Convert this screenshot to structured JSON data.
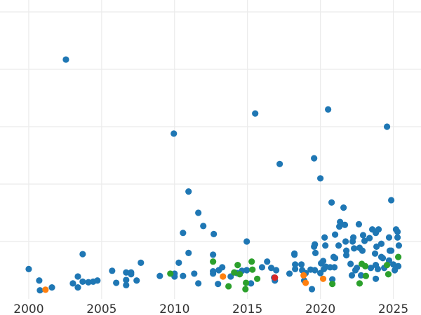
{
  "chart_data": {
    "type": "scatter",
    "title": "",
    "xlabel": "",
    "ylabel": "",
    "xlim": [
      1998.03,
      2026.9
    ],
    "ylim": [
      0,
      5.2
    ],
    "grid": true,
    "x_ticks": [
      2000,
      2005,
      2010,
      2015,
      2020,
      2025
    ],
    "x_tick_labels": [
      "2000",
      "2005",
      "2010",
      "2015",
      "2020",
      "2025"
    ],
    "y_gridlines": [
      1,
      2,
      3,
      4,
      5
    ],
    "series": [
      {
        "name": "blue",
        "color": "#1f77b4",
        "points": [
          [
            2000.0,
            0.52
          ],
          [
            2000.72,
            0.32
          ],
          [
            2000.77,
            0.15
          ],
          [
            2001.59,
            0.2
          ],
          [
            2002.55,
            4.17
          ],
          [
            2003.03,
            0.27
          ],
          [
            2003.37,
            0.39
          ],
          [
            2003.37,
            0.2
          ],
          [
            2003.7,
            0.78
          ],
          [
            2003.7,
            0.3
          ],
          [
            2004.09,
            0.29
          ],
          [
            2004.42,
            0.3
          ],
          [
            2004.71,
            0.32
          ],
          [
            2005.72,
            0.49
          ],
          [
            2006.0,
            0.28
          ],
          [
            2006.68,
            0.46
          ],
          [
            2006.68,
            0.33
          ],
          [
            2006.68,
            0.24
          ],
          [
            2007.02,
            0.46
          ],
          [
            2007.02,
            0.43
          ],
          [
            2007.4,
            0.32
          ],
          [
            2007.69,
            0.63
          ],
          [
            2008.99,
            0.4
          ],
          [
            2009.95,
            2.88
          ],
          [
            2010.0,
            0.44
          ],
          [
            2010.0,
            0.39
          ],
          [
            2010.29,
            0.63
          ],
          [
            2010.58,
            1.15
          ],
          [
            2010.58,
            0.4
          ],
          [
            2010.96,
            1.87
          ],
          [
            2010.96,
            0.8
          ],
          [
            2011.35,
            0.44
          ],
          [
            2011.63,
            1.5
          ],
          [
            2011.63,
            0.27
          ],
          [
            2011.97,
            1.27
          ],
          [
            2012.69,
            1.13
          ],
          [
            2012.64,
            0.77
          ],
          [
            2012.64,
            0.48
          ],
          [
            2012.64,
            0.44
          ],
          [
            2012.98,
            0.26
          ],
          [
            2013.03,
            0.5
          ],
          [
            2013.27,
            0.55
          ],
          [
            2013.85,
            0.39
          ],
          [
            2014.28,
            0.45
          ],
          [
            2014.62,
            0.49
          ],
          [
            2014.95,
            0.5
          ],
          [
            2014.95,
            1.0
          ],
          [
            2015.24,
            0.27
          ],
          [
            2015.53,
            3.23
          ],
          [
            2016.0,
            0.55
          ],
          [
            2016.35,
            0.65
          ],
          [
            2016.63,
            0.54
          ],
          [
            2016.83,
            0.37
          ],
          [
            2016.88,
            0.32
          ],
          [
            2016.97,
            0.5
          ],
          [
            2017.21,
            2.35
          ],
          [
            2017.88,
            0.44
          ],
          [
            2018.22,
            0.79
          ],
          [
            2018.22,
            0.77
          ],
          [
            2018.27,
            0.6
          ],
          [
            2018.27,
            0.52
          ],
          [
            2018.7,
            0.6
          ],
          [
            2018.75,
            0.5
          ],
          [
            2018.89,
            0.32
          ],
          [
            2018.99,
            0.45
          ],
          [
            2019.33,
            0.51
          ],
          [
            2019.42,
            0.17
          ],
          [
            2019.57,
            2.45
          ],
          [
            2019.57,
            0.91
          ],
          [
            2019.62,
            0.95
          ],
          [
            2019.66,
            0.8
          ],
          [
            2019.62,
            0.5
          ],
          [
            2020.0,
            2.1
          ],
          [
            2020.0,
            0.45
          ],
          [
            2020.05,
            0.62
          ],
          [
            2020.19,
            0.66
          ],
          [
            2020.24,
            0.52
          ],
          [
            2020.29,
            1.07
          ],
          [
            2020.34,
            0.93
          ],
          [
            2020.38,
            0.56
          ],
          [
            2020.53,
            3.3
          ],
          [
            2020.67,
            0.55
          ],
          [
            2020.77,
            1.68
          ],
          [
            2020.82,
            0.34
          ],
          [
            2020.91,
            0.73
          ],
          [
            2020.96,
            0.55
          ],
          [
            2021.01,
            1.12
          ],
          [
            2021.01,
            0.71
          ],
          [
            2021.25,
            0.93
          ],
          [
            2021.3,
            1.26
          ],
          [
            2021.35,
            1.34
          ],
          [
            2021.59,
            1.59
          ],
          [
            2021.68,
            1.29
          ],
          [
            2021.73,
            1.0
          ],
          [
            2021.78,
            0.84
          ],
          [
            2021.78,
            0.76
          ],
          [
            2022.07,
            0.61
          ],
          [
            2022.16,
            0.41
          ],
          [
            2022.21,
            1.0
          ],
          [
            2022.26,
            1.07
          ],
          [
            2022.31,
            0.88
          ],
          [
            2022.4,
            0.5
          ],
          [
            2022.5,
            0.54
          ],
          [
            2022.64,
            1.3
          ],
          [
            2022.69,
            0.89
          ],
          [
            2022.79,
            0.41
          ],
          [
            2022.88,
            0.84
          ],
          [
            2022.93,
            1.11
          ],
          [
            2023.03,
            1.01
          ],
          [
            2023.37,
            1.06
          ],
          [
            2023.56,
            1.21
          ],
          [
            2023.75,
            0.79
          ],
          [
            2023.8,
            0.59
          ],
          [
            2023.8,
            0.35
          ],
          [
            2023.85,
            0.91
          ],
          [
            2023.8,
            1.15
          ],
          [
            2023.99,
            1.21
          ],
          [
            2024.18,
            0.96
          ],
          [
            2024.18,
            0.73
          ],
          [
            2024.28,
            0.71
          ],
          [
            2024.38,
            0.54
          ],
          [
            2024.57,
            3.0
          ],
          [
            2024.71,
            1.07
          ],
          [
            2024.71,
            0.67
          ],
          [
            2024.76,
            0.84
          ],
          [
            2024.86,
            1.72
          ],
          [
            2024.86,
            0.84
          ],
          [
            2025.0,
            0.6
          ],
          [
            2025.19,
            1.21
          ],
          [
            2025.29,
            1.17
          ],
          [
            2025.29,
            1.07
          ],
          [
            2025.38,
            0.93
          ],
          [
            2025.34,
            0.57
          ],
          [
            2025.1,
            0.5
          ],
          [
            2023.94,
            0.52
          ],
          [
            2023.46,
            0.54
          ]
        ]
      },
      {
        "name": "green",
        "color": "#2ca02c",
        "points": [
          [
            2009.71,
            0.44
          ],
          [
            2012.64,
            0.65
          ],
          [
            2013.7,
            0.22
          ],
          [
            2014.09,
            0.46
          ],
          [
            2014.33,
            0.59
          ],
          [
            2014.47,
            0.43
          ],
          [
            2014.86,
            0.17
          ],
          [
            2014.9,
            0.28
          ],
          [
            2015.29,
            0.65
          ],
          [
            2015.34,
            0.51
          ],
          [
            2015.67,
            0.35
          ],
          [
            2020.82,
            0.26
          ],
          [
            2022.69,
            0.27
          ],
          [
            2022.84,
            0.61
          ],
          [
            2023.08,
            0.57
          ],
          [
            2023.12,
            0.4
          ],
          [
            2024.57,
            0.59
          ],
          [
            2024.66,
            0.43
          ],
          [
            2025.34,
            0.73
          ]
        ]
      },
      {
        "name": "orange",
        "color": "#ff7f0e",
        "points": [
          [
            2001.15,
            0.16
          ],
          [
            2013.32,
            0.39
          ],
          [
            2018.85,
            0.41
          ],
          [
            2018.99,
            0.28
          ],
          [
            2020.19,
            0.35
          ]
        ]
      },
      {
        "name": "red",
        "color": "#d62728",
        "points": [
          [
            2016.88,
            0.37
          ]
        ]
      }
    ]
  }
}
